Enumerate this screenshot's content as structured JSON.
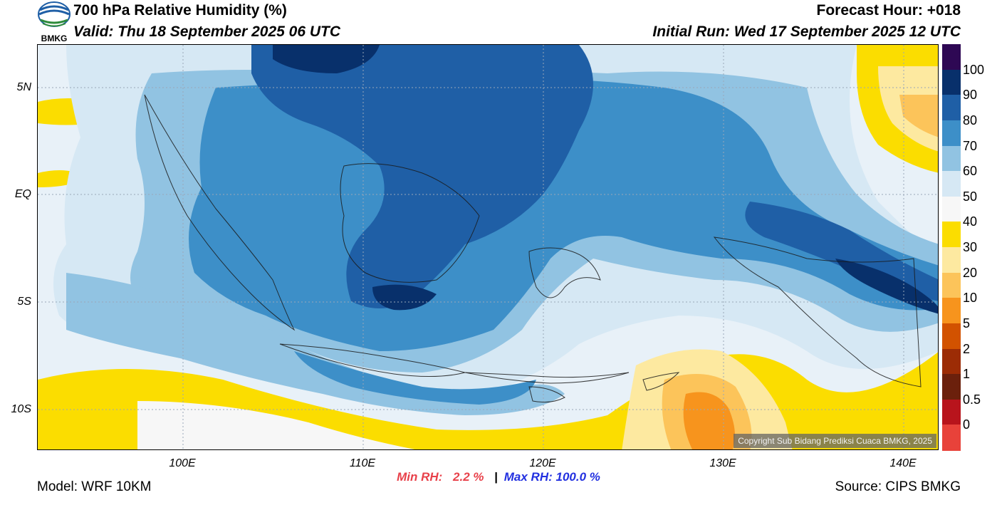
{
  "header": {
    "title": "700 hPa Relative Humidity (%)",
    "valid": "Valid: Thu 18 September 2025 06 UTC",
    "forecast_hour": "Forecast Hour: +018",
    "initial_run": "Initial Run: Wed 17 September 2025 12 UTC",
    "logo_text": "BMKG"
  },
  "map": {
    "copyright": "Copyright Sub Bidang Prediksi Cuaca BMKG, 2025",
    "lat_labels": [
      "5N",
      "EQ",
      "5S",
      "10S"
    ],
    "lon_labels": [
      "100E",
      "110E",
      "120E",
      "130E",
      "140E"
    ]
  },
  "colorbar": {
    "labels": [
      "100",
      "90",
      "80",
      "70",
      "60",
      "50",
      "40",
      "30",
      "20",
      "10",
      "5",
      "2",
      "1",
      "0.5",
      "0"
    ],
    "colors": [
      "#2e0854",
      "#08306b",
      "#1f5fa6",
      "#3d8fc8",
      "#91c3e2",
      "#d6e8f4",
      "#f7f7f7",
      "#fbdd00",
      "#fde9a0",
      "#fcc45a",
      "#f7941d",
      "#d25200",
      "#9c2c05",
      "#6b200c",
      "#b8141c",
      "#e8423a"
    ]
  },
  "footer": {
    "model": "Model: WRF 10KM",
    "source": "Source: CIPS BMKG",
    "min_rh_label": "Min RH:",
    "min_rh_value": "2.2 %",
    "separator": "|",
    "max_rh": "Max RH: 100.0 %",
    "min_color": "#e8414a",
    "max_color": "#2230e0"
  }
}
